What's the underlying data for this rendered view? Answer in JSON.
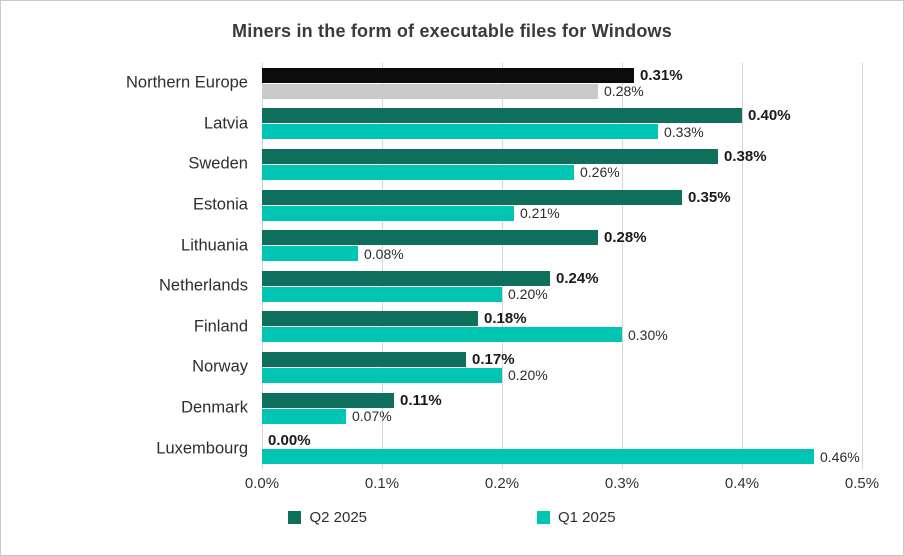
{
  "chart_data": {
    "type": "bar",
    "orientation": "horizontal",
    "title": "Miners in the form of executable files for Windows",
    "categories": [
      "Northern Europe",
      "Latvia",
      "Sweden",
      "Estonia",
      "Lithuania",
      "Netherlands",
      "Finland",
      "Norway",
      "Denmark",
      "Luxembourg"
    ],
    "series": [
      {
        "name": "Q2 2025",
        "color": "#0e6f5c",
        "values": [
          0.31,
          0.4,
          0.38,
          0.35,
          0.28,
          0.24,
          0.18,
          0.17,
          0.11,
          0.0
        ],
        "labels": [
          "0.31%",
          "0.40%",
          "0.38%",
          "0.35%",
          "0.28%",
          "0.24%",
          "0.18%",
          "0.17%",
          "0.11%",
          "0.00%"
        ]
      },
      {
        "name": "Q1 2025",
        "color": "#00c5b3",
        "values": [
          0.28,
          0.33,
          0.26,
          0.21,
          0.08,
          0.2,
          0.3,
          0.2,
          0.07,
          0.46
        ],
        "labels": [
          "0.28%",
          "0.33%",
          "0.26%",
          "0.21%",
          "0.08%",
          "0.20%",
          "0.30%",
          "0.20%",
          "0.07%",
          "0.46%"
        ]
      }
    ],
    "highlight_index": 0,
    "highlight_colors": [
      "#0d0d0d",
      "#c9c9c9"
    ],
    "x_ticks": [
      "0.0%",
      "0.1%",
      "0.2%",
      "0.3%",
      "0.4%",
      "0.5%"
    ],
    "xlim": [
      0,
      0.5
    ],
    "grid": true,
    "legend_position": "bottom",
    "legend": [
      {
        "label": "Q2 2025",
        "color": "#0e6f5c"
      },
      {
        "label": "Q1 2025",
        "color": "#00c5b3"
      }
    ]
  }
}
